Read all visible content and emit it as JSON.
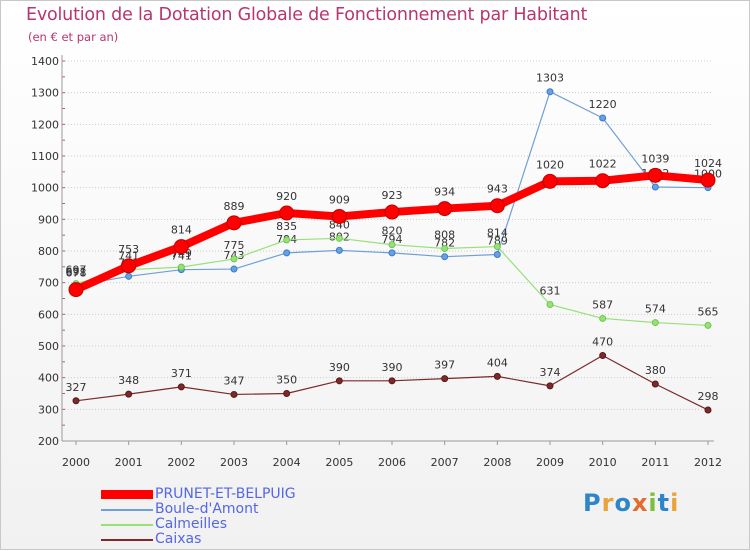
{
  "title": "Evolution de la Dotation Globale de Fonctionnement par Habitant",
  "subtitle": "(en € et par an)",
  "logo_text": "Proxiti",
  "colors": {
    "title": "#b8366f",
    "legend_text": "#5566e6",
    "axis": "#9a9a9a",
    "grid": "#cccccc",
    "label": "#333333"
  },
  "chart_data": {
    "type": "line",
    "x": [
      "2000",
      "2001",
      "2002",
      "2003",
      "2004",
      "2005",
      "2006",
      "2007",
      "2008",
      "2009",
      "2010",
      "2011",
      "2012"
    ],
    "ylim": [
      200,
      1400
    ],
    "yticks": [
      "200",
      "300",
      "400",
      "500",
      "600",
      "700",
      "800",
      "900",
      "1000",
      "1100",
      "1200",
      "1300",
      "1400"
    ],
    "grid": true,
    "legend_position": "bottom-left",
    "series": [
      {
        "name": "PRUNET-ET-BELPUIG",
        "color": "#ff0000",
        "marker": "#c00000",
        "width": 8,
        "radius": 7,
        "values": [
          678,
          753,
          814,
          889,
          920,
          909,
          923,
          934,
          943,
          1020,
          1022,
          1039,
          1024
        ]
      },
      {
        "name": "Boule-d'Amont",
        "color": "#6f9fd8",
        "marker": "#2f7ed6",
        "width": 1.2,
        "radius": 3,
        "values": [
          691,
          720,
          741,
          743,
          794,
          802,
          794,
          782,
          789,
          1303,
          1220,
          1002,
          1000
        ]
      },
      {
        "name": "Calmeilles",
        "color": "#98e07a",
        "marker": "#6bc84a",
        "width": 1.2,
        "radius": 3,
        "values": [
          697,
          741,
          749,
          775,
          835,
          840,
          820,
          808,
          814,
          631,
          587,
          574,
          565
        ]
      },
      {
        "name": "Caixas",
        "color": "#7a2a2a",
        "marker": "#5a1818",
        "width": 1.2,
        "radius": 3,
        "values": [
          327,
          348,
          371,
          347,
          350,
          390,
          390,
          397,
          404,
          374,
          470,
          380,
          298
        ]
      }
    ]
  }
}
